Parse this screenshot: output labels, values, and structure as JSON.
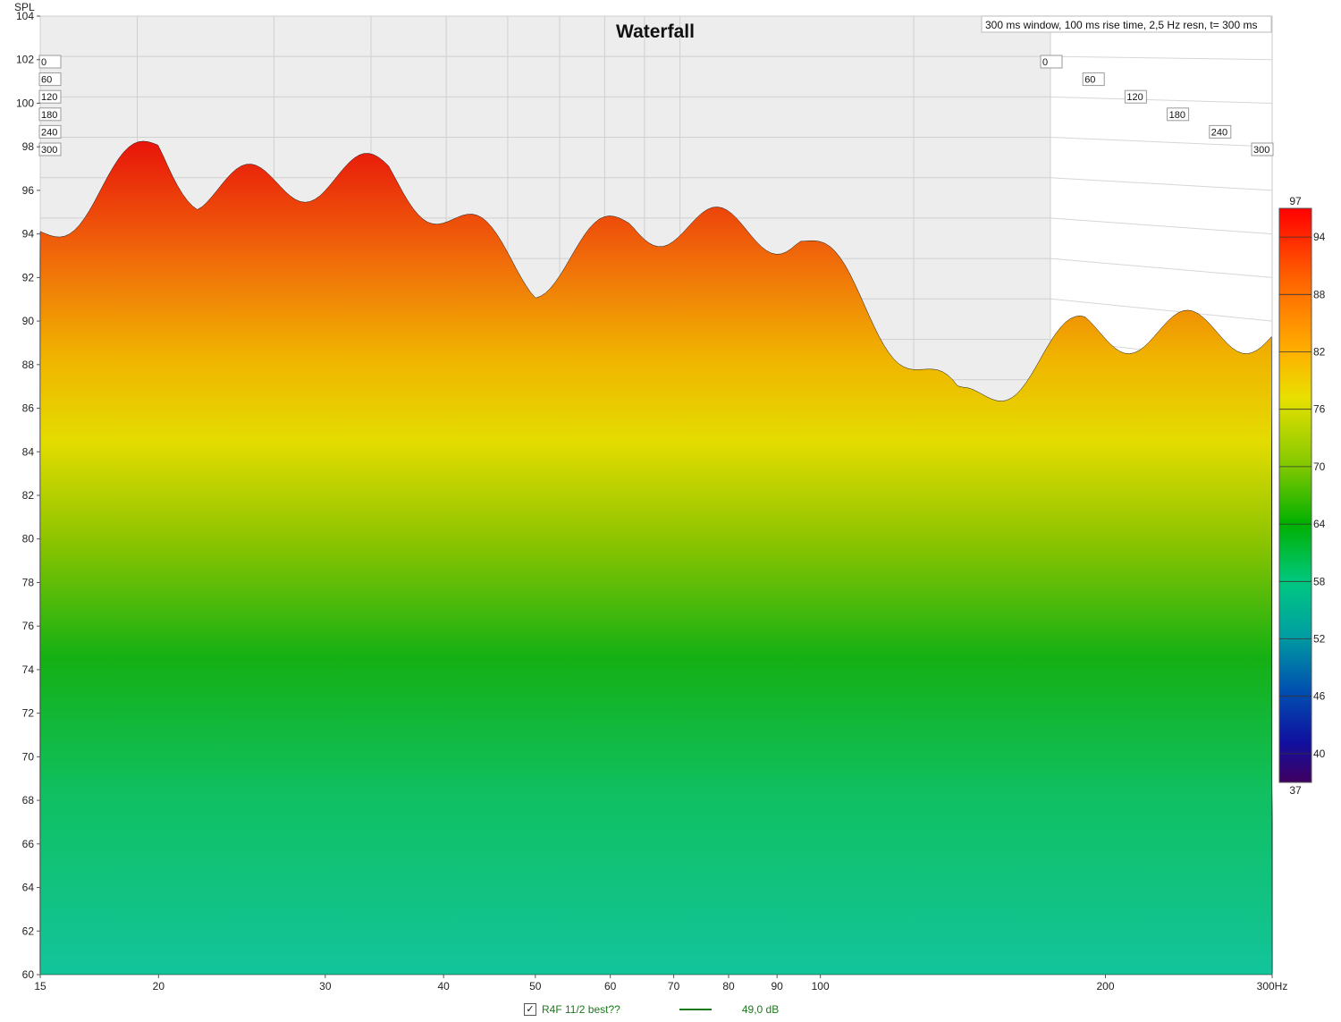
{
  "chart_data": {
    "type": "area",
    "title": "Waterfall",
    "info": "300 ms window, 100 ms rise time,  2,5 Hz resn, t= 300 ms",
    "ylabel": "SPL",
    "xunit": "Hz",
    "ylim": [
      60,
      104
    ],
    "y_ticks": [
      "104",
      "102",
      "100",
      "98",
      "96",
      "94",
      "92",
      "90",
      "88",
      "86",
      "84",
      "82",
      "80",
      "78",
      "76",
      "74",
      "72",
      "70",
      "68",
      "66",
      "64",
      "62",
      "60"
    ],
    "x_scale": "log",
    "xlim": [
      15,
      300
    ],
    "x_ticks": [
      "15",
      "20",
      "30",
      "40",
      "50",
      "60",
      "70",
      "80",
      "90",
      "100",
      "200",
      "300Hz"
    ],
    "time_axis_ms": [
      "0",
      "60",
      "120",
      "180",
      "240",
      "300"
    ],
    "colorbar": {
      "max": "97",
      "min": "37",
      "ticks": [
        "94",
        "88",
        "82",
        "76",
        "70",
        "64",
        "58",
        "52",
        "46",
        "40"
      ]
    },
    "peaks_front_slice": [
      {
        "freq": 15,
        "spl": 94.0
      },
      {
        "freq": 20,
        "spl": 98.0
      },
      {
        "freq": 22,
        "spl": 96.0
      },
      {
        "freq": 35,
        "spl": 96.8
      },
      {
        "freq": 50,
        "spl": 92.0
      },
      {
        "freq": 63,
        "spl": 94.5
      },
      {
        "freq": 95,
        "spl": 94.0
      },
      {
        "freq": 140,
        "spl": 86.0
      },
      {
        "freq": 190,
        "spl": 89.5
      }
    ],
    "series": [
      {
        "name": "R4F 11/2 best??",
        "level": "49,0 dB"
      }
    ]
  },
  "legend": {
    "checked": "✓",
    "name": "R4F 11/2 best??",
    "level": "49,0 dB"
  }
}
